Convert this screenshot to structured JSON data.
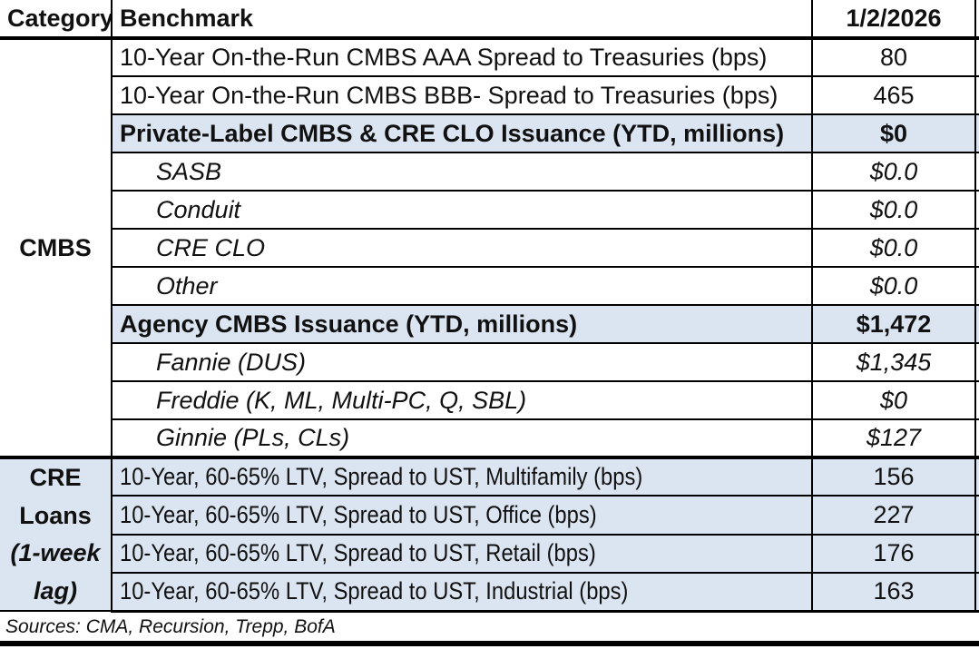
{
  "header": {
    "category": "Category",
    "benchmark": "Benchmark",
    "date": "1/2/2026"
  },
  "categories": [
    {
      "label": "CMBS"
    },
    {
      "lines": [
        "CRE",
        "Loans",
        "(1-week",
        "lag)"
      ]
    }
  ],
  "rows": [
    {
      "benchmark": "10-Year On-the-Run CMBS AAA Spread to Treasuries (bps)",
      "value": "80"
    },
    {
      "benchmark": "10-Year On-the-Run CMBS BBB- Spread to Treasuries (bps)",
      "value": "465"
    },
    {
      "benchmark": "Private-Label CMBS & CRE CLO Issuance (YTD, millions)",
      "value": "$0"
    },
    {
      "benchmark": "SASB",
      "value": "$0.0"
    },
    {
      "benchmark": "Conduit",
      "value": "$0.0"
    },
    {
      "benchmark": "CRE CLO",
      "value": "$0.0"
    },
    {
      "benchmark": "Other",
      "value": "$0.0"
    },
    {
      "benchmark": "Agency CMBS Issuance (YTD, millions)",
      "value": "$1,472"
    },
    {
      "benchmark": "Fannie (DUS)",
      "value": "$1,345"
    },
    {
      "benchmark": "Freddie (K, ML, Multi-PC, Q, SBL)",
      "value": "$0"
    },
    {
      "benchmark": "Ginnie (PLs, CLs)",
      "value": "$127"
    },
    {
      "benchmark": "10-Year, 60-65% LTV, Spread to UST, Multifamily (bps)",
      "value": "156"
    },
    {
      "benchmark": "10-Year, 60-65% LTV, Spread to UST, Office (bps)",
      "value": "227"
    },
    {
      "benchmark": "10-Year, 60-65% LTV, Spread to UST, Retail (bps)",
      "value": "176"
    },
    {
      "benchmark": "10-Year, 60-65% LTV, Spread to UST, Industrial (bps)",
      "value": "163"
    }
  ],
  "footer": {
    "sources": "Sources: CMA, Recursion, Trepp, BofA"
  },
  "colors": {
    "highlight": "#dbe5f1",
    "line": "#000000",
    "text": "#111111"
  }
}
